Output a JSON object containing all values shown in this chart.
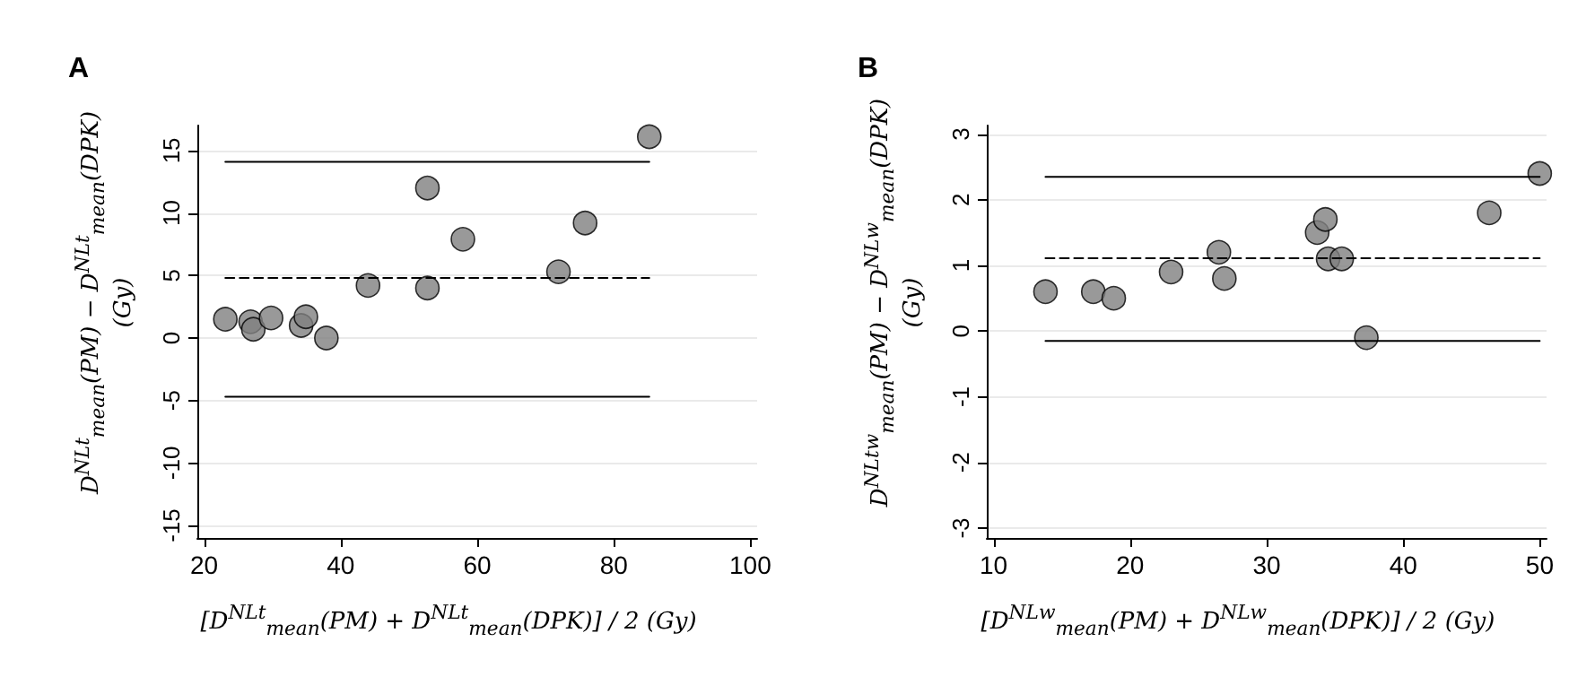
{
  "chart_data": [
    {
      "type": "scatter",
      "title": "A",
      "xlabel": "[D$^{NLt}$$_{mean}$(PM) + D$^{NLt}$$_{mean}$(DPK)] / 2 (Gy)",
      "ylabel": "D$^{NLt}$$_{mean}$(PM) − D$^{NLt}$$_{mean}$(DPK)\n(Gy)",
      "xlim": [
        19,
        101
      ],
      "xticks": [
        20,
        40,
        60,
        80,
        100
      ],
      "ylim": [
        -16,
        17
      ],
      "yticks": [
        -15,
        -10,
        -5,
        0,
        5,
        10,
        15
      ],
      "grid": "y",
      "marker": "circle",
      "series": [
        {
          "color": "#808080",
          "x": [
            23.1,
            26.8,
            27.2,
            29.8,
            34.2,
            34.9,
            37.9,
            44.0,
            52.7,
            52.7,
            57.9,
            71.9,
            75.8,
            85.2
          ],
          "values": [
            1.5,
            1.3,
            0.7,
            1.6,
            1.0,
            1.7,
            0.0,
            4.2,
            12.0,
            4.0,
            7.9,
            5.3,
            9.2,
            16.1
          ]
        },
        {
          "type": "line",
          "color": "#000000",
          "line_style": "solid",
          "marker": "none",
          "x": [
            23.1,
            85.2
          ],
          "values": [
            14.1,
            14.1
          ]
        },
        {
          "type": "line",
          "color": "#000000",
          "line_style": "dashed",
          "marker": "none",
          "x": [
            23.1,
            85.2
          ],
          "values": [
            4.8,
            4.8
          ]
        },
        {
          "type": "line",
          "color": "#000000",
          "line_style": "solid",
          "marker": "none",
          "x": [
            23.1,
            85.2
          ],
          "values": [
            -4.7,
            -4.7
          ]
        }
      ]
    },
    {
      "type": "scatter",
      "title": "B",
      "xlabel": "[D$^{NLw}$$_{mean}$(PM) + D$^{NLw}$$_{mean}$(DPK)] / 2 (Gy)",
      "ylabel": "D$^{NLtw}$$_{mean}$(PM) − D$^{NLw}$$_{mean}$(DPK)\n(Gy)",
      "xlim": [
        9.5,
        50.5
      ],
      "xticks": [
        10,
        20,
        30,
        40,
        50
      ],
      "ylim": [
        -3.15,
        3.13
      ],
      "yticks": [
        -3,
        -2,
        -1,
        0,
        1,
        2,
        3
      ],
      "grid": "y",
      "marker": "circle",
      "series": [
        {
          "color": "#808080",
          "x": [
            13.8,
            17.3,
            18.8,
            23.0,
            26.5,
            26.9,
            33.7,
            34.3,
            34.5,
            35.5,
            37.3,
            46.3,
            50.0
          ],
          "values": [
            0.6,
            0.6,
            0.5,
            0.9,
            1.2,
            0.8,
            1.5,
            1.7,
            1.1,
            1.1,
            -0.1,
            1.8,
            2.4
          ]
        },
        {
          "type": "line",
          "color": "#000000",
          "line_style": "solid",
          "marker": "none",
          "x": [
            13.8,
            50.0
          ],
          "values": [
            2.35,
            2.35
          ]
        },
        {
          "type": "line",
          "color": "#000000",
          "line_style": "dashed",
          "marker": "none",
          "x": [
            13.8,
            50.0
          ],
          "values": [
            1.11,
            1.11
          ]
        },
        {
          "type": "line",
          "color": "#000000",
          "line_style": "solid",
          "marker": "none",
          "x": [
            13.8,
            50.0
          ],
          "values": [
            -0.15,
            -0.15
          ]
        }
      ]
    }
  ]
}
